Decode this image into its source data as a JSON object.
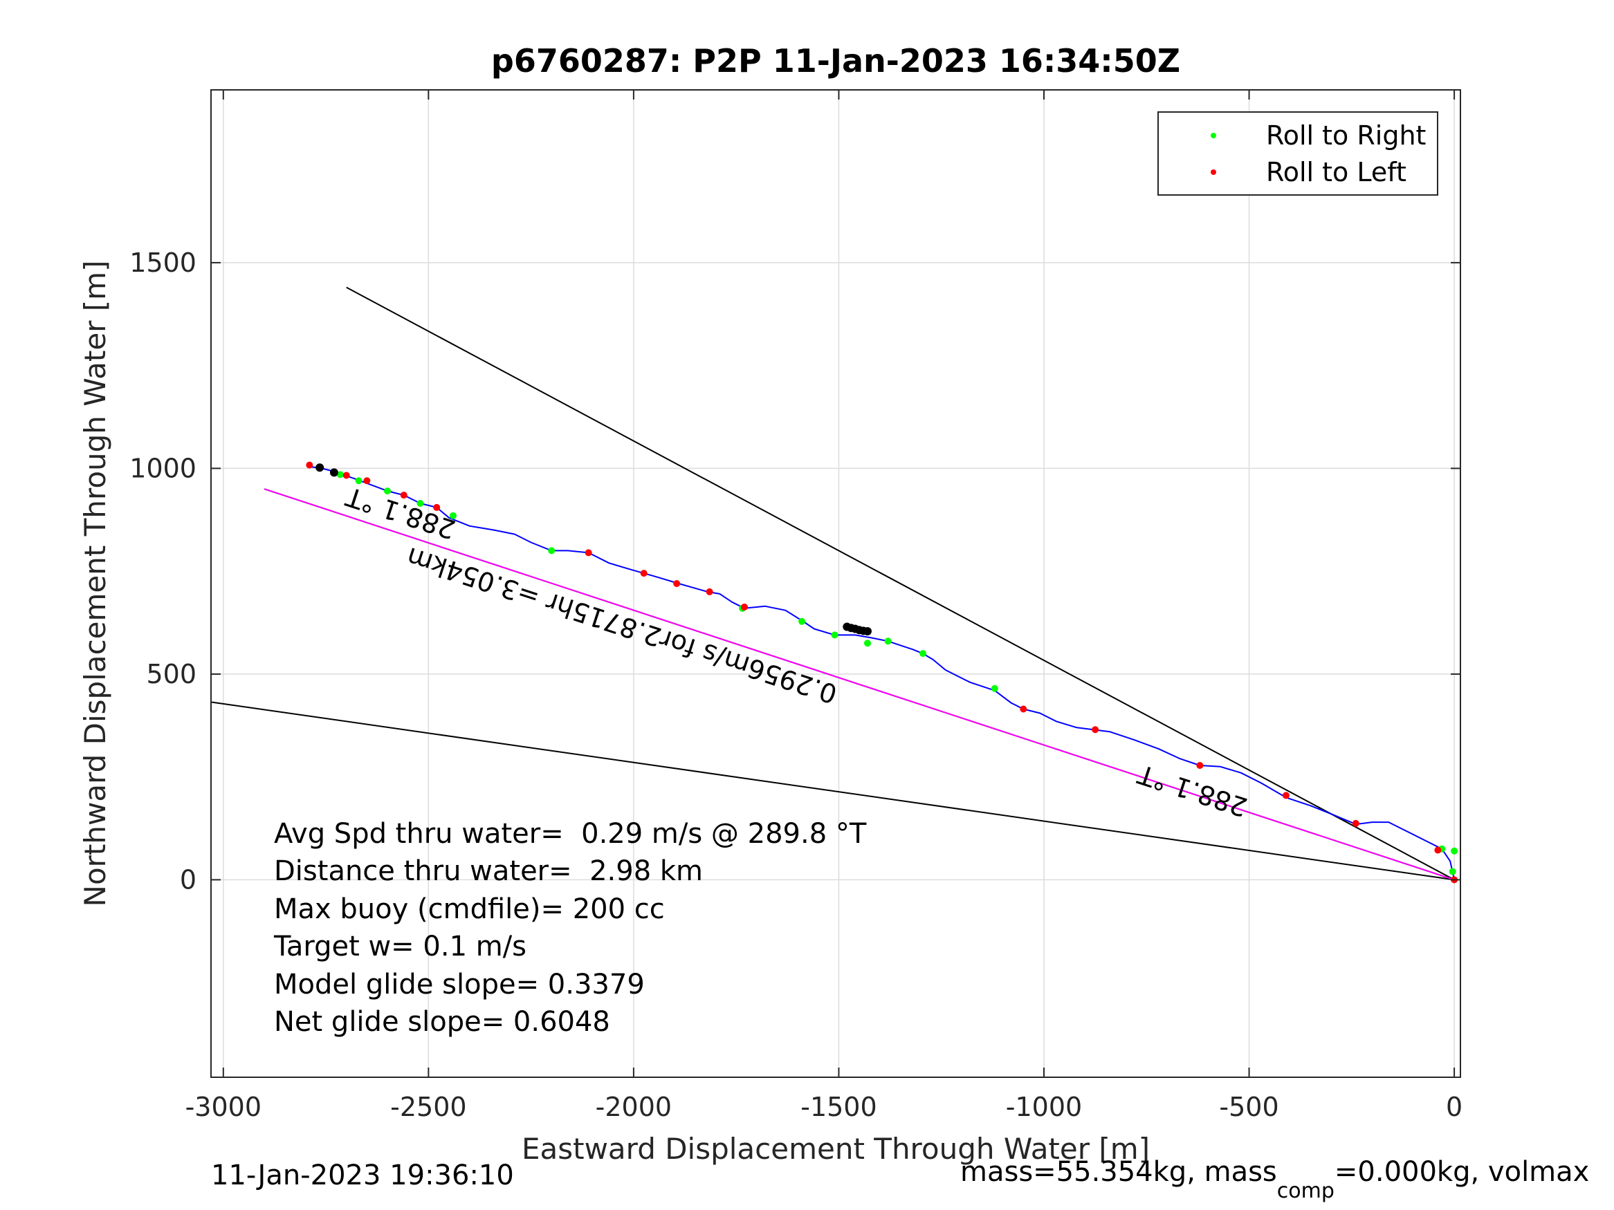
{
  "chart_data": {
    "type": "scatter",
    "title": "p6760287: P2P 11-Jan-2023 16:34:50Z",
    "xlabel": "Eastward Displacement Through Water [m]",
    "ylabel": "Northward Displacement Through Water [m]",
    "xlim": [
      -3030,
      15
    ],
    "ylim": [
      -480,
      1920
    ],
    "xticks": [
      -3000,
      -2500,
      -2000,
      -1500,
      -1000,
      -500,
      0
    ],
    "yticks": [
      0,
      500,
      1000,
      1500
    ],
    "grid": true,
    "legend": {
      "placement": "top-right",
      "entries": [
        {
          "label": "Roll to Right",
          "color": "#00ff00"
        },
        {
          "label": "Roll to Left",
          "color": "#ff0000"
        }
      ]
    },
    "track": {
      "color": "#0000ff",
      "points": [
        [
          0,
          0
        ],
        [
          -10,
          45
        ],
        [
          -30,
          75
        ],
        [
          -70,
          95
        ],
        [
          -120,
          120
        ],
        [
          -160,
          140
        ],
        [
          -200,
          140
        ],
        [
          -240,
          135
        ],
        [
          -300,
          160
        ],
        [
          -350,
          180
        ],
        [
          -410,
          200
        ],
        [
          -470,
          235
        ],
        [
          -520,
          260
        ],
        [
          -570,
          275
        ],
        [
          -620,
          278
        ],
        [
          -670,
          295
        ],
        [
          -720,
          318
        ],
        [
          -780,
          340
        ],
        [
          -840,
          360
        ],
        [
          -880,
          365
        ],
        [
          -920,
          370
        ],
        [
          -970,
          385
        ],
        [
          -1010,
          405
        ],
        [
          -1050,
          415
        ],
        [
          -1080,
          430
        ],
        [
          -1120,
          460
        ],
        [
          -1180,
          480
        ],
        [
          -1240,
          510
        ],
        [
          -1270,
          535
        ],
        [
          -1295,
          550
        ],
        [
          -1320,
          560
        ],
        [
          -1350,
          570
        ],
        [
          -1380,
          580
        ],
        [
          -1420,
          588
        ],
        [
          -1460,
          595
        ],
        [
          -1510,
          595
        ],
        [
          -1560,
          610
        ],
        [
          -1590,
          630
        ],
        [
          -1630,
          655
        ],
        [
          -1680,
          665
        ],
        [
          -1730,
          660
        ],
        [
          -1760,
          675
        ],
        [
          -1790,
          695
        ],
        [
          -1820,
          700
        ],
        [
          -1855,
          710
        ],
        [
          -1890,
          720
        ],
        [
          -1940,
          735
        ],
        [
          -1975,
          745
        ],
        [
          -2010,
          755
        ],
        [
          -2060,
          770
        ],
        [
          -2110,
          795
        ],
        [
          -2160,
          800
        ],
        [
          -2200,
          800
        ],
        [
          -2250,
          820
        ],
        [
          -2290,
          840
        ],
        [
          -2340,
          850
        ],
        [
          -2400,
          860
        ],
        [
          -2450,
          880
        ],
        [
          -2480,
          905
        ],
        [
          -2520,
          915
        ],
        [
          -2560,
          935
        ],
        [
          -2600,
          945
        ],
        [
          -2640,
          960
        ],
        [
          -2680,
          975
        ],
        [
          -2710,
          985
        ],
        [
          -2740,
          995
        ],
        [
          -2760,
          1000
        ],
        [
          -2795,
          1005
        ]
      ]
    },
    "roll_right": [
      [
        0,
        70
      ],
      [
        -4,
        20
      ],
      [
        -30,
        75
      ],
      [
        -1120,
        465
      ],
      [
        -1295,
        550
      ],
      [
        -1380,
        580
      ],
      [
        -1430,
        575
      ],
      [
        -1510,
        595
      ],
      [
        -1590,
        628
      ],
      [
        -1735,
        660
      ],
      [
        -2200,
        800
      ],
      [
        -2440,
        885
      ],
      [
        -2520,
        915
      ],
      [
        -2600,
        945
      ],
      [
        -2670,
        970
      ],
      [
        -2715,
        985
      ]
    ],
    "roll_left": [
      [
        0,
        0
      ],
      [
        -40,
        72
      ],
      [
        -240,
        137
      ],
      [
        -410,
        205
      ],
      [
        -620,
        278
      ],
      [
        -875,
        365
      ],
      [
        -1050,
        415
      ],
      [
        -1730,
        663
      ],
      [
        -1815,
        700
      ],
      [
        -1895,
        720
      ],
      [
        -1975,
        745
      ],
      [
        -2110,
        795
      ],
      [
        -2480,
        905
      ],
      [
        -2560,
        935
      ],
      [
        -2650,
        970
      ],
      [
        -2700,
        983
      ],
      [
        -2790,
        1008
      ]
    ],
    "surface_fixes": [
      [
        -1480,
        615
      ],
      [
        -1470,
        612
      ],
      [
        -1460,
        610
      ],
      [
        -1450,
        607
      ],
      [
        -1440,
        605
      ],
      [
        -1430,
        604
      ],
      [
        -2765,
        1002
      ],
      [
        -2730,
        990
      ]
    ],
    "heading_lines": [
      {
        "from": [
          0,
          0
        ],
        "to": [
          -2700,
          1440
        ],
        "color": "#000000"
      },
      {
        "from": [
          0,
          0
        ],
        "to": [
          -3030,
          432
        ],
        "color": "#000000"
      },
      {
        "from": [
          0,
          0
        ],
        "to": [
          -2900,
          950
        ],
        "color": "#000000"
      },
      {
        "from": [
          0,
          0
        ],
        "to": [
          -2900,
          950
        ],
        "color": "#ff00ff"
      }
    ],
    "annotations": [
      {
        "text": "288.1 °T",
        "at": [
          -2430,
          870
        ],
        "rotate": 198
      },
      {
        "text": "288.1 °T",
        "at": [
          -500,
          195
        ],
        "rotate": 198
      },
      {
        "text": "0.2956m/s for2.8715hr =3.054km",
        "at": [
          -1500,
          470
        ],
        "rotate": 198
      }
    ],
    "stats": [
      "Avg Spd thru water=  0.29 m/s @ 289.8 °T",
      "Distance thru water=  2.98 km",
      "Max buoy (cmdfile)= 200 cc",
      "Target w= 0.1 m/s",
      "Model glide slope= 0.3379",
      "Net glide slope= 0.6048"
    ]
  },
  "footer": {
    "timestamp": "11-Jan-2023 19:36:10",
    "mass_text_a": "mass=55.354kg, mass",
    "mass_sub": "comp",
    "mass_text_b": "=0.000kg, volmax"
  }
}
